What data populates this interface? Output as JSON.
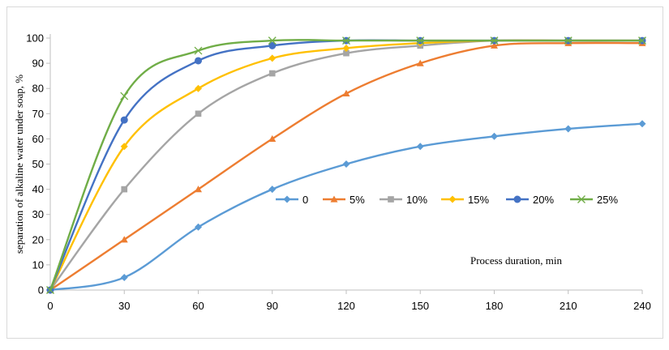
{
  "chart_data": {
    "type": "line",
    "title": "",
    "xlabel": "Process duration,  min",
    "ylabel": "separation of alkaline  water  under soap, %",
    "x": [
      0,
      30,
      60,
      90,
      120,
      150,
      180,
      210,
      240
    ],
    "xlim": [
      0,
      240
    ],
    "ylim": [
      0,
      100
    ],
    "xticks": [
      0,
      30,
      60,
      90,
      120,
      150,
      180,
      210,
      240
    ],
    "yticks": [
      0,
      10,
      20,
      30,
      40,
      50,
      60,
      70,
      80,
      90,
      100
    ],
    "grid": false,
    "smooth": true,
    "legend_position": "center-right",
    "series": [
      {
        "name": "0",
        "color": "#5b9bd5",
        "marker": "diamond",
        "values": [
          0,
          5,
          25,
          40,
          50,
          57,
          61,
          64,
          66
        ]
      },
      {
        "name": "5%",
        "color": "#ed7d31",
        "marker": "triangle",
        "values": [
          0,
          20,
          40,
          60,
          78,
          90,
          97,
          98,
          98
        ]
      },
      {
        "name": "10%",
        "color": "#a5a5a5",
        "marker": "square",
        "values": [
          0,
          40,
          70,
          86,
          94,
          97,
          99,
          99,
          99
        ]
      },
      {
        "name": "15%",
        "color": "#ffc000",
        "marker": "diamond",
        "values": [
          0,
          57,
          80,
          92,
          96,
          98,
          99,
          99,
          99
        ]
      },
      {
        "name": "20%",
        "color": "#4472c4",
        "marker": "circle",
        "values": [
          0,
          67.5,
          91,
          97,
          99,
          99,
          99,
          99,
          99
        ]
      },
      {
        "name": "25%",
        "color": "#70ad47",
        "marker": "x",
        "values": [
          0,
          77,
          95,
          99,
          99,
          99,
          99,
          99,
          99
        ]
      }
    ]
  }
}
